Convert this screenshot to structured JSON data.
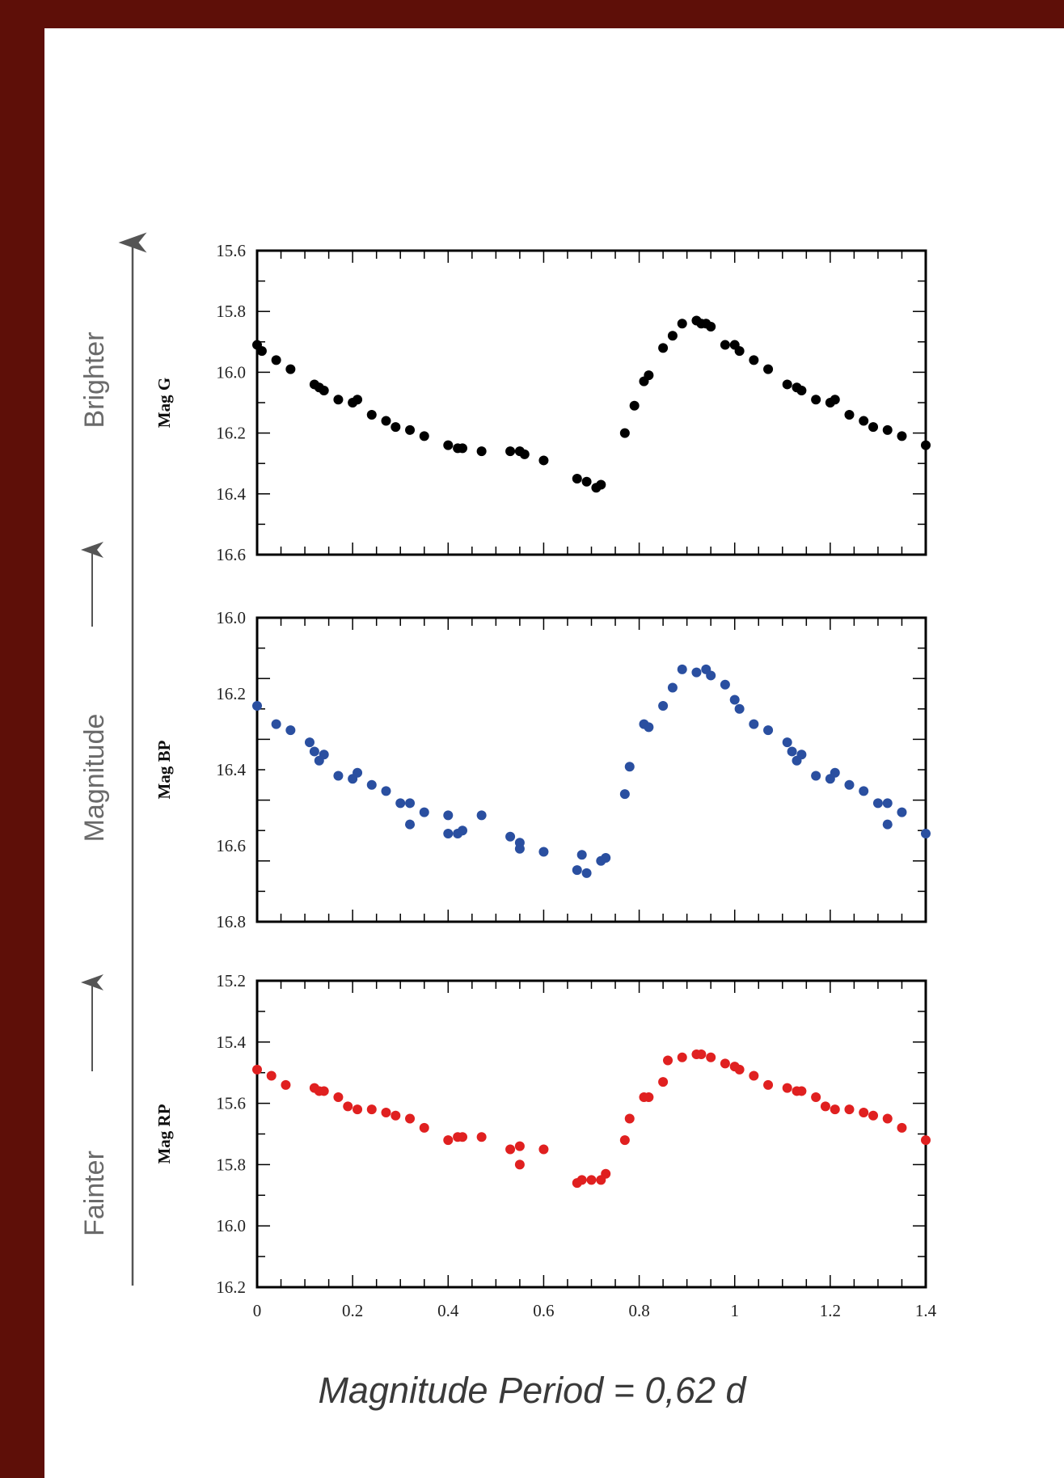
{
  "side_labels": {
    "top": "Brighter",
    "middle": "Magnitude",
    "bottom": "Fainter"
  },
  "caption": "Magnitude Period = 0,62 d",
  "chart_data": [
    {
      "type": "scatter",
      "ylabel": "Mag G",
      "color": "#000000",
      "xlim": [
        0,
        1.4
      ],
      "ylim": [
        16.6,
        15.6
      ],
      "ytick_labels": [
        "15.6",
        "15.8",
        "16.0",
        "16.2",
        "16.4",
        "16.6"
      ],
      "xtick_labels": [],
      "points": [
        [
          0.0,
          15.91
        ],
        [
          0.01,
          15.93
        ],
        [
          0.04,
          15.96
        ],
        [
          0.07,
          15.99
        ],
        [
          0.12,
          16.04
        ],
        [
          0.13,
          16.05
        ],
        [
          0.14,
          16.06
        ],
        [
          0.17,
          16.09
        ],
        [
          0.2,
          16.1
        ],
        [
          0.21,
          16.09
        ],
        [
          0.24,
          16.14
        ],
        [
          0.27,
          16.16
        ],
        [
          0.29,
          16.18
        ],
        [
          0.32,
          16.19
        ],
        [
          0.35,
          16.21
        ],
        [
          0.4,
          16.24
        ],
        [
          0.42,
          16.25
        ],
        [
          0.43,
          16.25
        ],
        [
          0.47,
          16.26
        ],
        [
          0.53,
          16.26
        ],
        [
          0.55,
          16.26
        ],
        [
          0.56,
          16.27
        ],
        [
          0.6,
          16.29
        ],
        [
          0.67,
          16.35
        ],
        [
          0.69,
          16.36
        ],
        [
          0.71,
          16.38
        ],
        [
          0.72,
          16.37
        ],
        [
          0.77,
          16.2
        ],
        [
          0.79,
          16.11
        ],
        [
          0.81,
          16.03
        ],
        [
          0.82,
          16.01
        ],
        [
          0.85,
          15.92
        ],
        [
          0.87,
          15.88
        ],
        [
          0.89,
          15.84
        ],
        [
          0.92,
          15.83
        ],
        [
          0.93,
          15.84
        ],
        [
          0.94,
          15.84
        ],
        [
          0.95,
          15.85
        ],
        [
          0.98,
          15.91
        ],
        [
          1.0,
          15.91
        ],
        [
          1.01,
          15.93
        ],
        [
          1.04,
          15.96
        ],
        [
          1.07,
          15.99
        ],
        [
          1.11,
          16.04
        ],
        [
          1.13,
          16.05
        ],
        [
          1.14,
          16.06
        ],
        [
          1.17,
          16.09
        ],
        [
          1.2,
          16.1
        ],
        [
          1.21,
          16.09
        ],
        [
          1.24,
          16.14
        ],
        [
          1.27,
          16.16
        ],
        [
          1.29,
          16.18
        ],
        [
          1.32,
          16.19
        ],
        [
          1.35,
          16.21
        ],
        [
          1.4,
          16.24
        ]
      ]
    },
    {
      "type": "scatter",
      "ylabel": "Mag BP",
      "color": "#2a4fa0",
      "xlim": [
        0,
        1.4
      ],
      "ylim": [
        16.9,
        15.9
      ],
      "ytick_labels": [
        "16.0",
        "16.2",
        "16.4",
        "16.6",
        "16.8"
      ],
      "xtick_labels": [],
      "points": [
        [
          0.0,
          16.19
        ],
        [
          0.04,
          16.25
        ],
        [
          0.07,
          16.27
        ],
        [
          0.11,
          16.31
        ],
        [
          0.12,
          16.34
        ],
        [
          0.13,
          16.37
        ],
        [
          0.14,
          16.35
        ],
        [
          0.17,
          16.42
        ],
        [
          0.2,
          16.43
        ],
        [
          0.21,
          16.41
        ],
        [
          0.24,
          16.45
        ],
        [
          0.27,
          16.47
        ],
        [
          0.3,
          16.51
        ],
        [
          0.32,
          16.51
        ],
        [
          0.32,
          16.58
        ],
        [
          0.35,
          16.54
        ],
        [
          0.4,
          16.55
        ],
        [
          0.4,
          16.61
        ],
        [
          0.42,
          16.61
        ],
        [
          0.43,
          16.6
        ],
        [
          0.47,
          16.55
        ],
        [
          0.53,
          16.62
        ],
        [
          0.55,
          16.64
        ],
        [
          0.55,
          16.66
        ],
        [
          0.6,
          16.67
        ],
        [
          0.67,
          16.73
        ],
        [
          0.68,
          16.68
        ],
        [
          0.69,
          16.74
        ],
        [
          0.72,
          16.7
        ],
        [
          0.73,
          16.69
        ],
        [
          0.77,
          16.48
        ],
        [
          0.78,
          16.39
        ],
        [
          0.81,
          16.25
        ],
        [
          0.82,
          16.26
        ],
        [
          0.85,
          16.19
        ],
        [
          0.87,
          16.13
        ],
        [
          0.89,
          16.07
        ],
        [
          0.92,
          16.08
        ],
        [
          0.94,
          16.07
        ],
        [
          0.95,
          16.09
        ],
        [
          0.98,
          16.12
        ],
        [
          1.0,
          16.17
        ],
        [
          1.01,
          16.2
        ],
        [
          1.04,
          16.25
        ],
        [
          1.07,
          16.27
        ],
        [
          1.11,
          16.31
        ],
        [
          1.12,
          16.34
        ],
        [
          1.13,
          16.37
        ],
        [
          1.14,
          16.35
        ],
        [
          1.17,
          16.42
        ],
        [
          1.2,
          16.43
        ],
        [
          1.21,
          16.41
        ],
        [
          1.24,
          16.45
        ],
        [
          1.27,
          16.47
        ],
        [
          1.3,
          16.51
        ],
        [
          1.32,
          16.51
        ],
        [
          1.32,
          16.58
        ],
        [
          1.35,
          16.54
        ],
        [
          1.4,
          16.61
        ]
      ]
    },
    {
      "type": "scatter",
      "ylabel": "Mag RP",
      "color": "#e02020",
      "xlim": [
        0,
        1.4
      ],
      "ylim": [
        16.2,
        15.2
      ],
      "ytick_labels": [
        "15.2",
        "15.4",
        "15.6",
        "15.8",
        "16.0",
        "16.2"
      ],
      "xtick_labels": [
        "0",
        "0.2",
        "0.4",
        "0.6",
        "0.8",
        "1",
        "1.2",
        "1.4"
      ],
      "points": [
        [
          0.0,
          15.49
        ],
        [
          0.03,
          15.51
        ],
        [
          0.06,
          15.54
        ],
        [
          0.12,
          15.55
        ],
        [
          0.13,
          15.56
        ],
        [
          0.14,
          15.56
        ],
        [
          0.17,
          15.58
        ],
        [
          0.19,
          15.61
        ],
        [
          0.21,
          15.62
        ],
        [
          0.24,
          15.62
        ],
        [
          0.27,
          15.63
        ],
        [
          0.29,
          15.64
        ],
        [
          0.32,
          15.65
        ],
        [
          0.35,
          15.68
        ],
        [
          0.4,
          15.72
        ],
        [
          0.42,
          15.71
        ],
        [
          0.43,
          15.71
        ],
        [
          0.47,
          15.71
        ],
        [
          0.53,
          15.75
        ],
        [
          0.55,
          15.74
        ],
        [
          0.55,
          15.8
        ],
        [
          0.6,
          15.75
        ],
        [
          0.67,
          15.86
        ],
        [
          0.68,
          15.85
        ],
        [
          0.7,
          15.85
        ],
        [
          0.72,
          15.85
        ],
        [
          0.73,
          15.83
        ],
        [
          0.77,
          15.72
        ],
        [
          0.78,
          15.65
        ],
        [
          0.81,
          15.58
        ],
        [
          0.82,
          15.58
        ],
        [
          0.85,
          15.53
        ],
        [
          0.86,
          15.46
        ],
        [
          0.89,
          15.45
        ],
        [
          0.92,
          15.44
        ],
        [
          0.93,
          15.44
        ],
        [
          0.95,
          15.45
        ],
        [
          0.98,
          15.47
        ],
        [
          1.0,
          15.48
        ],
        [
          1.01,
          15.49
        ],
        [
          1.04,
          15.51
        ],
        [
          1.07,
          15.54
        ],
        [
          1.11,
          15.55
        ],
        [
          1.13,
          15.56
        ],
        [
          1.14,
          15.56
        ],
        [
          1.17,
          15.58
        ],
        [
          1.19,
          15.61
        ],
        [
          1.21,
          15.62
        ],
        [
          1.24,
          15.62
        ],
        [
          1.27,
          15.63
        ],
        [
          1.29,
          15.64
        ],
        [
          1.32,
          15.65
        ],
        [
          1.35,
          15.68
        ],
        [
          1.4,
          15.72
        ]
      ]
    }
  ]
}
